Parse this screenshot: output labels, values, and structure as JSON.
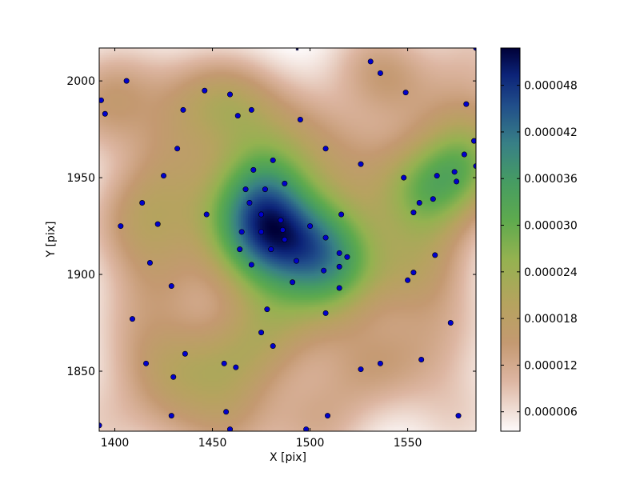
{
  "chart_data": {
    "type": "scatter",
    "subtype": "density-heatmap-with-points",
    "xlabel": "X [pix]",
    "ylabel": "Y [pix]",
    "xlim": [
      1392,
      1585
    ],
    "ylim": [
      1819,
      2017
    ],
    "xticks": [
      1400,
      1450,
      1500,
      1550
    ],
    "yticks": [
      1850,
      1900,
      1950,
      2000
    ],
    "colorbar": {
      "min": 3.5e-06,
      "max": 5.28e-05,
      "ticks": [
        6e-06,
        1.2e-05,
        1.8e-05,
        2.4e-05,
        3e-05,
        3.6e-05,
        4.2e-05,
        4.8e-05
      ],
      "tick_labels": [
        "0.000006",
        "0.000012",
        "0.000018",
        "0.000024",
        "0.000030",
        "0.000036",
        "0.000042",
        "0.000048"
      ],
      "colormap": "gist_earth_r"
    },
    "point_color": "#0000cc",
    "grid": false,
    "points": [
      [
        1392,
        1822
      ],
      [
        1393,
        1990
      ],
      [
        1395,
        1983
      ],
      [
        1403,
        1925
      ],
      [
        1406,
        2000
      ],
      [
        1409,
        1877
      ],
      [
        1414,
        1937
      ],
      [
        1416,
        1854
      ],
      [
        1418,
        1906
      ],
      [
        1422,
        1926
      ],
      [
        1425,
        1951
      ],
      [
        1429,
        1894
      ],
      [
        1429,
        1827
      ],
      [
        1430,
        1847
      ],
      [
        1432,
        1965
      ],
      [
        1435,
        1985
      ],
      [
        1436,
        1859
      ],
      [
        1446,
        1995
      ],
      [
        1447,
        1931
      ],
      [
        1456,
        1854
      ],
      [
        1457,
        1829
      ],
      [
        1459,
        1993
      ],
      [
        1459,
        1820
      ],
      [
        1462,
        1852
      ],
      [
        1463,
        1982
      ],
      [
        1464,
        1913
      ],
      [
        1465,
        1922
      ],
      [
        1467,
        1944
      ],
      [
        1469,
        1937
      ],
      [
        1470,
        1985
      ],
      [
        1470,
        1905
      ],
      [
        1471,
        1954
      ],
      [
        1475,
        1931
      ],
      [
        1475,
        1922
      ],
      [
        1475,
        1870
      ],
      [
        1477,
        1944
      ],
      [
        1478,
        1882
      ],
      [
        1480,
        1913
      ],
      [
        1481,
        1863
      ],
      [
        1481,
        1959
      ],
      [
        1485,
        1928
      ],
      [
        1486,
        1923
      ],
      [
        1487,
        1947
      ],
      [
        1487,
        1918
      ],
      [
        1491,
        1896
      ],
      [
        1493,
        1907
      ],
      [
        1495,
        1980
      ],
      [
        1498,
        1820
      ],
      [
        1500,
        1925
      ],
      [
        1507,
        1902
      ],
      [
        1508,
        1919
      ],
      [
        1508,
        1880
      ],
      [
        1508,
        1965
      ],
      [
        1509,
        1827
      ],
      [
        1515,
        1893
      ],
      [
        1515,
        1911
      ],
      [
        1515,
        1904
      ],
      [
        1516,
        1931
      ],
      [
        1519,
        1909
      ],
      [
        1526,
        1957
      ],
      [
        1526,
        1851
      ],
      [
        1531,
        2010
      ],
      [
        1536,
        1854
      ],
      [
        1536,
        2004
      ],
      [
        1548,
        1950
      ],
      [
        1549,
        1994
      ],
      [
        1550,
        1897
      ],
      [
        1553,
        1901
      ],
      [
        1553,
        1932
      ],
      [
        1556,
        1937
      ],
      [
        1557,
        1856
      ],
      [
        1563,
        1939
      ],
      [
        1564,
        1910
      ],
      [
        1565,
        1951
      ],
      [
        1572,
        1875
      ],
      [
        1574,
        1953
      ],
      [
        1575,
        1948
      ],
      [
        1576,
        1827
      ],
      [
        1579,
        1962
      ],
      [
        1580,
        1988
      ],
      [
        1584,
        1969
      ],
      [
        1585,
        1956
      ],
      [
        1585,
        2017
      ]
    ]
  }
}
